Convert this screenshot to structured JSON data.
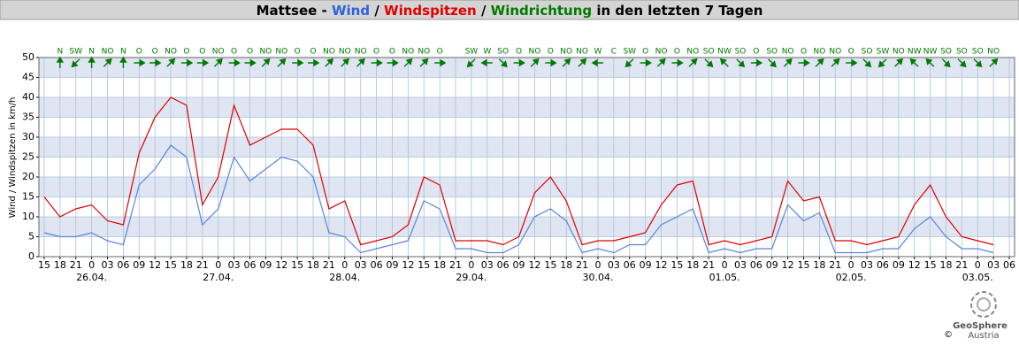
{
  "chart_data": {
    "type": "line",
    "title": [
      "Mattsee -",
      "Wind",
      "/",
      "Windspitzen",
      "/",
      "Windrichtung",
      "in den letzten 7 Tagen"
    ],
    "title_colors": [
      "#000000",
      "#2f62e0",
      "#000000",
      "#e00000",
      "#000000",
      "#007a00",
      "#000000"
    ],
    "ylabel": "Wind / Windspitzen in km/h",
    "x": [
      "25.04. 15:00",
      "25.04. 18:00",
      "25.04. 21:00",
      "26.04. 00:00",
      "26.04. 03:00",
      "26.04. 06:00",
      "26.04. 09:00",
      "26.04. 12:00",
      "26.04. 15:00",
      "26.04. 18:00",
      "26.04. 21:00",
      "27.04. 00:00",
      "27.04. 03:00",
      "27.04. 06:00",
      "27.04. 09:00",
      "27.04. 12:00",
      "27.04. 15:00",
      "27.04. 18:00",
      "27.04. 21:00",
      "28.04. 00:00",
      "28.04. 03:00",
      "28.04. 06:00",
      "28.04. 09:00",
      "28.04. 12:00",
      "28.04. 15:00",
      "28.04. 18:00",
      "28.04. 21:00",
      "29.04. 00:00",
      "29.04. 03:00",
      "29.04. 06:00",
      "29.04. 09:00",
      "29.04. 12:00",
      "29.04. 15:00",
      "29.04. 18:00",
      "29.04. 21:00",
      "30.04. 00:00",
      "30.04. 03:00",
      "30.04. 06:00",
      "30.04. 09:00",
      "30.04. 12:00",
      "30.04. 15:00",
      "30.04. 18:00",
      "30.04. 21:00",
      "01.05. 00:00",
      "01.05. 03:00",
      "01.05. 06:00",
      "01.05. 09:00",
      "01.05. 12:00",
      "01.05. 15:00",
      "01.05. 18:00",
      "01.05. 21:00",
      "02.05. 00:00",
      "02.05. 03:00",
      "02.05. 06:00",
      "02.05. 09:00",
      "02.05. 12:00",
      "02.05. 15:00",
      "02.05. 18:00",
      "02.05. 21:00",
      "03.05. 00:00",
      "03.05. 03:00"
    ],
    "series": [
      {
        "color": "#e00000",
        "values": [
          15,
          10,
          12,
          13,
          9,
          8,
          26,
          35,
          40,
          38,
          13,
          20,
          38,
          28,
          30,
          32,
          32,
          28,
          12,
          14,
          3,
          4,
          5,
          8,
          20,
          18,
          4,
          4,
          4,
          3,
          5,
          16,
          20,
          14,
          3,
          4,
          4,
          5,
          6,
          13,
          18,
          19,
          3,
          4,
          3,
          4,
          5,
          19,
          14,
          15,
          4,
          4,
          3,
          4,
          5,
          13,
          18,
          10,
          5,
          4,
          3
        ]
      },
      {
        "color": "#5a85dc",
        "values": [
          6,
          5,
          5,
          6,
          4,
          3,
          18,
          22,
          28,
          25,
          8,
          12,
          25,
          19,
          22,
          25,
          24,
          20,
          6,
          5,
          1,
          2,
          3,
          4,
          14,
          12,
          2,
          2,
          1,
          1,
          3,
          10,
          12,
          9,
          1,
          2,
          1,
          3,
          3,
          8,
          10,
          12,
          1,
          2,
          1,
          2,
          2,
          13,
          9,
          11,
          1,
          1,
          1,
          2,
          2,
          7,
          10,
          5,
          2,
          2,
          1
        ]
      }
    ],
    "directions": [
      null,
      "N",
      "SW",
      "N",
      "NO",
      "N",
      "O",
      "O",
      "NO",
      "O",
      "O",
      "NO",
      "O",
      "O",
      "NO",
      "NO",
      "O",
      "O",
      "NO",
      "NO",
      "NO",
      "O",
      "O",
      "NO",
      "NO",
      "O",
      null,
      "SW",
      "W",
      "SO",
      "O",
      "NO",
      "O",
      "NO",
      "NO",
      "W",
      "C",
      "SW",
      "O",
      "NO",
      "O",
      "NO",
      "SO",
      "NW",
      "SO",
      "O",
      "SO",
      "NO",
      "O",
      "NO",
      "NO",
      "O",
      "SO",
      "SW",
      "NO",
      "NW",
      "NW",
      "SO",
      "SO",
      "SO",
      "NO"
    ],
    "direction_color": "#007a00",
    "xlim": [
      "25.04. 14:00",
      "03.05. 07:00"
    ],
    "xticks": [
      {
        "value": "25.04. 15:00",
        "label": "15"
      },
      {
        "value": "25.04. 18:00",
        "label": "18"
      },
      {
        "value": "25.04. 21:00",
        "label": "21"
      },
      {
        "value": "26.04. 00:00",
        "label": "0"
      },
      {
        "value": "26.04. 03:00",
        "label": "03"
      },
      {
        "value": "26.04. 06:00",
        "label": "06"
      },
      {
        "value": "26.04. 09:00",
        "label": "09"
      },
      {
        "value": "26.04. 12:00",
        "label": "12"
      },
      {
        "value": "26.04. 15:00",
        "label": "15"
      },
      {
        "value": "26.04. 18:00",
        "label": "18"
      },
      {
        "value": "26.04. 21:00",
        "label": "21"
      },
      {
        "value": "27.04. 00:00",
        "label": "0"
      },
      {
        "value": "27.04. 03:00",
        "label": "03"
      },
      {
        "value": "27.04. 06:00",
        "label": "06"
      },
      {
        "value": "27.04. 09:00",
        "label": "09"
      },
      {
        "value": "27.04. 12:00",
        "label": "12"
      },
      {
        "value": "27.04. 15:00",
        "label": "15"
      },
      {
        "value": "27.04. 18:00",
        "label": "18"
      },
      {
        "value": "27.04. 21:00",
        "label": "21"
      },
      {
        "value": "28.04. 00:00",
        "label": "0"
      },
      {
        "value": "28.04. 03:00",
        "label": "03"
      },
      {
        "value": "28.04. 06:00",
        "label": "06"
      },
      {
        "value": "28.04. 09:00",
        "label": "09"
      },
      {
        "value": "28.04. 12:00",
        "label": "12"
      },
      {
        "value": "28.04. 15:00",
        "label": "15"
      },
      {
        "value": "28.04. 18:00",
        "label": "18"
      },
      {
        "value": "28.04. 21:00",
        "label": "21"
      },
      {
        "value": "29.04. 00:00",
        "label": "0"
      },
      {
        "value": "29.04. 03:00",
        "label": "03"
      },
      {
        "value": "29.04. 06:00",
        "label": "06"
      },
      {
        "value": "29.04. 09:00",
        "label": "09"
      },
      {
        "value": "29.04. 12:00",
        "label": "12"
      },
      {
        "value": "29.04. 15:00",
        "label": "15"
      },
      {
        "value": "29.04. 18:00",
        "label": "18"
      },
      {
        "value": "29.04. 21:00",
        "label": "21"
      },
      {
        "value": "30.04. 00:00",
        "label": "0"
      },
      {
        "value": "30.04. 03:00",
        "label": "03"
      },
      {
        "value": "30.04. 06:00",
        "label": "06"
      },
      {
        "value": "30.04. 09:00",
        "label": "09"
      },
      {
        "value": "30.04. 12:00",
        "label": "12"
      },
      {
        "value": "30.04. 15:00",
        "label": "15"
      },
      {
        "value": "30.04. 18:00",
        "label": "18"
      },
      {
        "value": "30.04. 21:00",
        "label": "21"
      },
      {
        "value": "01.05. 00:00",
        "label": "0"
      },
      {
        "value": "01.05. 03:00",
        "label": "03"
      },
      {
        "value": "01.05. 06:00",
        "label": "06"
      },
      {
        "value": "01.05. 09:00",
        "label": "09"
      },
      {
        "value": "01.05. 12:00",
        "label": "12"
      },
      {
        "value": "01.05. 15:00",
        "label": "15"
      },
      {
        "value": "01.05. 18:00",
        "label": "18"
      },
      {
        "value": "01.05. 21:00",
        "label": "21"
      },
      {
        "value": "02.05. 00:00",
        "label": "0"
      },
      {
        "value": "02.05. 03:00",
        "label": "03"
      },
      {
        "value": "02.05. 06:00",
        "label": "06"
      },
      {
        "value": "02.05. 09:00",
        "label": "09"
      },
      {
        "value": "02.05. 12:00",
        "label": "12"
      },
      {
        "value": "02.05. 15:00",
        "label": "15"
      },
      {
        "value": "02.05. 18:00",
        "label": "18"
      },
      {
        "value": "02.05. 21:00",
        "label": "21"
      },
      {
        "value": "03.05. 00:00",
        "label": "0"
      },
      {
        "value": "03.05. 03:00",
        "label": "03"
      },
      {
        "value": "03.05. 06:00",
        "label": "06"
      }
    ],
    "date_ticks": [
      {
        "value": "26.04. 00:00",
        "label": "26.04."
      },
      {
        "value": "27.04. 00:00",
        "label": "27.04."
      },
      {
        "value": "28.04. 00:00",
        "label": "28.04."
      },
      {
        "value": "29.04. 00:00",
        "label": "29.04."
      },
      {
        "value": "30.04. 00:00",
        "label": "30.04."
      },
      {
        "value": "01.05. 00:00",
        "label": "01.05."
      },
      {
        "value": "02.05. 00:00",
        "label": "02.05."
      },
      {
        "value": "03.05. 00:00",
        "label": "03.05."
      }
    ],
    "ylim": [
      0,
      50
    ],
    "yticks": [
      0,
      5,
      10,
      15,
      20,
      25,
      30,
      35,
      40,
      45,
      50
    ],
    "grid": true,
    "band_color": "#dfe6f2",
    "credit": {
      "brand": "GeoSphere",
      "country": "Austria",
      "copyright": "©"
    }
  }
}
